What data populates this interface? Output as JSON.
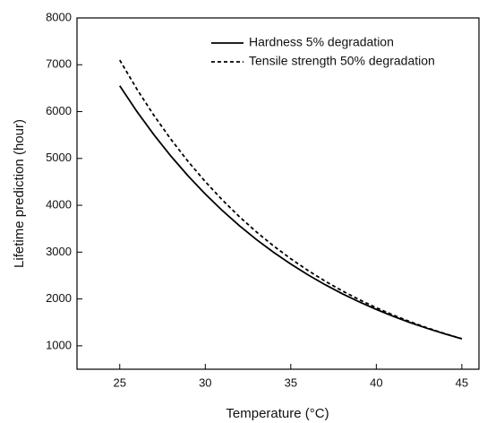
{
  "chart_data": {
    "type": "line",
    "x_label": "Temperature (°C)",
    "y_label": "Lifetime prediction (hour)",
    "x": [
      25,
      26,
      27,
      28,
      29,
      30,
      31,
      32,
      33,
      34,
      35,
      36,
      37,
      38,
      39,
      40,
      41,
      42,
      43,
      44,
      45
    ],
    "series": [
      {
        "name": "Hardness 5% degradation",
        "color": "#000000",
        "dash": false,
        "values": [
          6550,
          6004,
          5504,
          5046,
          4625,
          4240,
          3887,
          3563,
          3266,
          2994,
          2745,
          2516,
          2306,
          2114,
          1938,
          1777,
          1629,
          1493,
          1369,
          1255,
          1150
        ]
      },
      {
        "name": "Tensile strength 50% degradation",
        "color": "#000000",
        "dash": true,
        "values": [
          7100,
          6482,
          5918,
          5404,
          4934,
          4505,
          4113,
          3755,
          3428,
          3130,
          2858,
          2609,
          2382,
          2175,
          1986,
          1813,
          1655,
          1511,
          1380,
          1260,
          1150
        ]
      }
    ],
    "xlim": [
      22.5,
      46
    ],
    "xticks": [
      25,
      30,
      35,
      40,
      45
    ],
    "ylim": [
      500,
      8000
    ],
    "yticks": [
      1000,
      2000,
      3000,
      4000,
      5000,
      6000,
      7000,
      8000
    ],
    "legend": "upper right"
  }
}
